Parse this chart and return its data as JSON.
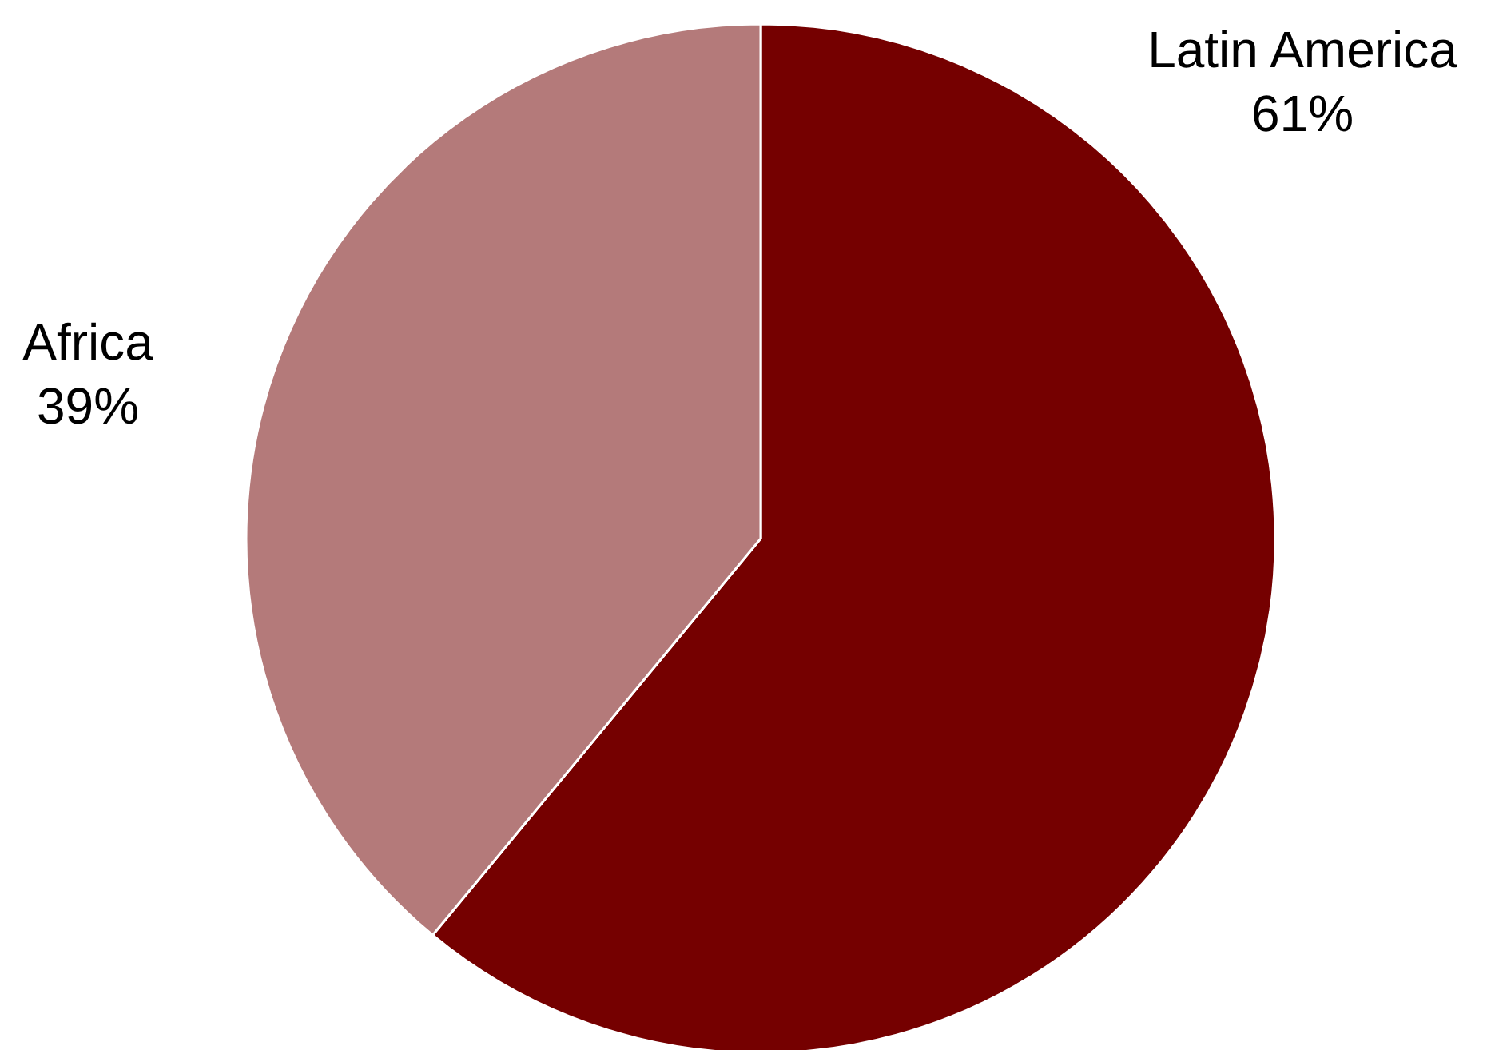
{
  "chart_data": {
    "type": "pie",
    "categories": [
      "Latin America",
      "Africa"
    ],
    "values": [
      61,
      39
    ],
    "colors": [
      "#750000",
      "#b47a7a"
    ],
    "value_labels": [
      "61%",
      "39%"
    ]
  }
}
